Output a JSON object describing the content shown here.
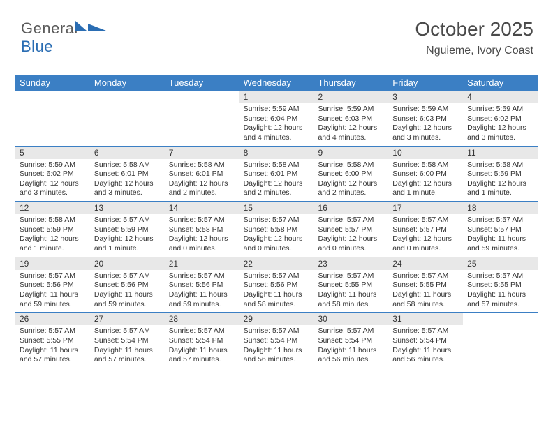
{
  "brand": {
    "part1": "General",
    "part2": "Blue"
  },
  "title": {
    "month": "October 2025",
    "location": "Nguieme, Ivory Coast"
  },
  "colors": {
    "header_bg": "#3b7fc4",
    "daynum_bg": "#e8e8e8",
    "text": "#333333",
    "logo_gray": "#5a5a5a",
    "logo_blue": "#2a6db3"
  },
  "dayNames": [
    "Sunday",
    "Monday",
    "Tuesday",
    "Wednesday",
    "Thursday",
    "Friday",
    "Saturday"
  ],
  "weeks": [
    [
      {
        "n": "",
        "sr": "",
        "ss": "",
        "dl": ""
      },
      {
        "n": "",
        "sr": "",
        "ss": "",
        "dl": ""
      },
      {
        "n": "",
        "sr": "",
        "ss": "",
        "dl": ""
      },
      {
        "n": "1",
        "sr": "Sunrise: 5:59 AM",
        "ss": "Sunset: 6:04 PM",
        "dl": "Daylight: 12 hours and 4 minutes."
      },
      {
        "n": "2",
        "sr": "Sunrise: 5:59 AM",
        "ss": "Sunset: 6:03 PM",
        "dl": "Daylight: 12 hours and 4 minutes."
      },
      {
        "n": "3",
        "sr": "Sunrise: 5:59 AM",
        "ss": "Sunset: 6:03 PM",
        "dl": "Daylight: 12 hours and 3 minutes."
      },
      {
        "n": "4",
        "sr": "Sunrise: 5:59 AM",
        "ss": "Sunset: 6:02 PM",
        "dl": "Daylight: 12 hours and 3 minutes."
      }
    ],
    [
      {
        "n": "5",
        "sr": "Sunrise: 5:59 AM",
        "ss": "Sunset: 6:02 PM",
        "dl": "Daylight: 12 hours and 3 minutes."
      },
      {
        "n": "6",
        "sr": "Sunrise: 5:58 AM",
        "ss": "Sunset: 6:01 PM",
        "dl": "Daylight: 12 hours and 3 minutes."
      },
      {
        "n": "7",
        "sr": "Sunrise: 5:58 AM",
        "ss": "Sunset: 6:01 PM",
        "dl": "Daylight: 12 hours and 2 minutes."
      },
      {
        "n": "8",
        "sr": "Sunrise: 5:58 AM",
        "ss": "Sunset: 6:01 PM",
        "dl": "Daylight: 12 hours and 2 minutes."
      },
      {
        "n": "9",
        "sr": "Sunrise: 5:58 AM",
        "ss": "Sunset: 6:00 PM",
        "dl": "Daylight: 12 hours and 2 minutes."
      },
      {
        "n": "10",
        "sr": "Sunrise: 5:58 AM",
        "ss": "Sunset: 6:00 PM",
        "dl": "Daylight: 12 hours and 1 minute."
      },
      {
        "n": "11",
        "sr": "Sunrise: 5:58 AM",
        "ss": "Sunset: 5:59 PM",
        "dl": "Daylight: 12 hours and 1 minute."
      }
    ],
    [
      {
        "n": "12",
        "sr": "Sunrise: 5:58 AM",
        "ss": "Sunset: 5:59 PM",
        "dl": "Daylight: 12 hours and 1 minute."
      },
      {
        "n": "13",
        "sr": "Sunrise: 5:57 AM",
        "ss": "Sunset: 5:59 PM",
        "dl": "Daylight: 12 hours and 1 minute."
      },
      {
        "n": "14",
        "sr": "Sunrise: 5:57 AM",
        "ss": "Sunset: 5:58 PM",
        "dl": "Daylight: 12 hours and 0 minutes."
      },
      {
        "n": "15",
        "sr": "Sunrise: 5:57 AM",
        "ss": "Sunset: 5:58 PM",
        "dl": "Daylight: 12 hours and 0 minutes."
      },
      {
        "n": "16",
        "sr": "Sunrise: 5:57 AM",
        "ss": "Sunset: 5:57 PM",
        "dl": "Daylight: 12 hours and 0 minutes."
      },
      {
        "n": "17",
        "sr": "Sunrise: 5:57 AM",
        "ss": "Sunset: 5:57 PM",
        "dl": "Daylight: 12 hours and 0 minutes."
      },
      {
        "n": "18",
        "sr": "Sunrise: 5:57 AM",
        "ss": "Sunset: 5:57 PM",
        "dl": "Daylight: 11 hours and 59 minutes."
      }
    ],
    [
      {
        "n": "19",
        "sr": "Sunrise: 5:57 AM",
        "ss": "Sunset: 5:56 PM",
        "dl": "Daylight: 11 hours and 59 minutes."
      },
      {
        "n": "20",
        "sr": "Sunrise: 5:57 AM",
        "ss": "Sunset: 5:56 PM",
        "dl": "Daylight: 11 hours and 59 minutes."
      },
      {
        "n": "21",
        "sr": "Sunrise: 5:57 AM",
        "ss": "Sunset: 5:56 PM",
        "dl": "Daylight: 11 hours and 59 minutes."
      },
      {
        "n": "22",
        "sr": "Sunrise: 5:57 AM",
        "ss": "Sunset: 5:56 PM",
        "dl": "Daylight: 11 hours and 58 minutes."
      },
      {
        "n": "23",
        "sr": "Sunrise: 5:57 AM",
        "ss": "Sunset: 5:55 PM",
        "dl": "Daylight: 11 hours and 58 minutes."
      },
      {
        "n": "24",
        "sr": "Sunrise: 5:57 AM",
        "ss": "Sunset: 5:55 PM",
        "dl": "Daylight: 11 hours and 58 minutes."
      },
      {
        "n": "25",
        "sr": "Sunrise: 5:57 AM",
        "ss": "Sunset: 5:55 PM",
        "dl": "Daylight: 11 hours and 57 minutes."
      }
    ],
    [
      {
        "n": "26",
        "sr": "Sunrise: 5:57 AM",
        "ss": "Sunset: 5:55 PM",
        "dl": "Daylight: 11 hours and 57 minutes."
      },
      {
        "n": "27",
        "sr": "Sunrise: 5:57 AM",
        "ss": "Sunset: 5:54 PM",
        "dl": "Daylight: 11 hours and 57 minutes."
      },
      {
        "n": "28",
        "sr": "Sunrise: 5:57 AM",
        "ss": "Sunset: 5:54 PM",
        "dl": "Daylight: 11 hours and 57 minutes."
      },
      {
        "n": "29",
        "sr": "Sunrise: 5:57 AM",
        "ss": "Sunset: 5:54 PM",
        "dl": "Daylight: 11 hours and 56 minutes."
      },
      {
        "n": "30",
        "sr": "Sunrise: 5:57 AM",
        "ss": "Sunset: 5:54 PM",
        "dl": "Daylight: 11 hours and 56 minutes."
      },
      {
        "n": "31",
        "sr": "Sunrise: 5:57 AM",
        "ss": "Sunset: 5:54 PM",
        "dl": "Daylight: 11 hours and 56 minutes."
      },
      {
        "n": "",
        "sr": "",
        "ss": "",
        "dl": ""
      }
    ]
  ]
}
